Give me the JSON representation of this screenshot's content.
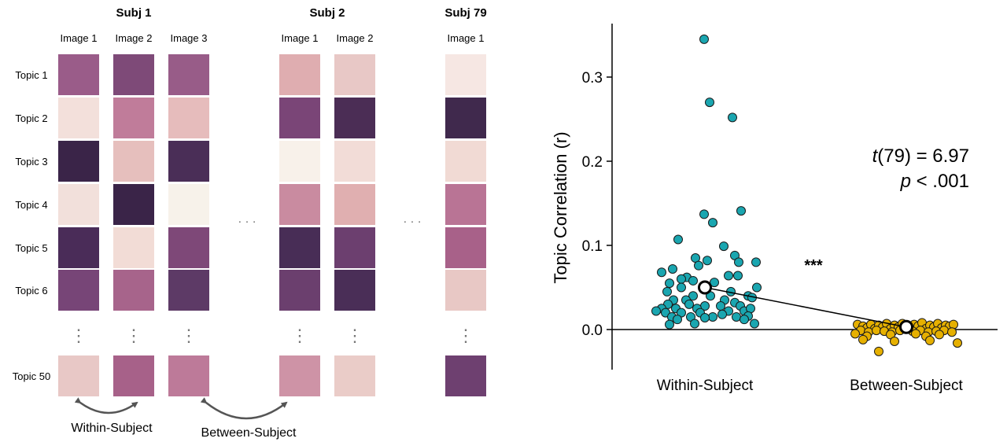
{
  "chart_data": [
    {
      "type": "heatmap",
      "description_panel": "left",
      "subjects": [
        {
          "title": "Subj 1",
          "images": [
            "Image 1",
            "Image 2",
            "Image 3"
          ]
        },
        {
          "title": "Subj 2",
          "images": [
            "Image 1",
            "Image 2"
          ]
        },
        {
          "title": "Subj 79",
          "images": [
            "Image 1"
          ]
        }
      ],
      "row_labels": [
        "Topic 1",
        "Topic 2",
        "Topic 3",
        "Topic 4",
        "Topic 5",
        "Topic 6",
        "Topic 50"
      ],
      "ellipsis_h": "· · ·",
      "ellipsis_v": "⋮",
      "cell_colors": [
        [
          "#9a5c89",
          "#7e4a78",
          "#985c88",
          "#dfadb0",
          "#e8c8c6",
          "#f6e7e3"
        ],
        [
          "#f3e0db",
          "#c07c9a",
          "#e6bcbc",
          "#7a4577",
          "#4b2d55",
          "#40294d"
        ],
        [
          "#3a2448",
          "#e6bfbd",
          "#4a2e57",
          "#f8f1ea",
          "#f2dcd7",
          "#f1dad4"
        ],
        [
          "#f2e0db",
          "#3a2448",
          "#f7f2ea",
          "#c98ba0",
          "#e0afb0",
          "#b97495"
        ],
        [
          "#4a2c58",
          "#f2dcd6",
          "#7e4878",
          "#482d56",
          "#6c3f6f",
          "#a86189"
        ],
        [
          "#774577",
          "#a7648b",
          "#5d3a66",
          "#6b3f6e",
          "#4a2e57",
          "#e8c8c5"
        ],
        [
          "#e8c8c6",
          "#a76189",
          "#bd7a99",
          "#ce93a6",
          "#eaccc8",
          "#6e4070"
        ]
      ],
      "arrows": [
        "Within-Subject",
        "Between-Subject"
      ]
    },
    {
      "type": "scatter",
      "ylabel": "Topic Correlation (r)",
      "categories": [
        "Within-Subject",
        "Between-Subject"
      ],
      "ylim": [
        -0.048,
        0.355
      ],
      "yticks": [
        0.0,
        0.1,
        0.2,
        0.3
      ],
      "ytick_labels": [
        "0.0",
        "0.1",
        "0.2",
        "0.3"
      ],
      "series": [
        {
          "name": "Within-Subject",
          "color": "#1aa6b0",
          "jitter_halfwidth": 0.34,
          "mean": 0.05,
          "sem": 0.006,
          "points": [
            {
              "j": -0.01,
              "y": 0.345
            },
            {
              "j": 0.06,
              "y": 0.27
            },
            {
              "j": 0.35,
              "y": 0.252
            },
            {
              "j": 0.46,
              "y": 0.141
            },
            {
              "j": -0.01,
              "y": 0.137
            },
            {
              "j": 0.1,
              "y": 0.127
            },
            {
              "j": -0.34,
              "y": 0.107
            },
            {
              "j": 0.24,
              "y": 0.099
            },
            {
              "j": -0.12,
              "y": 0.085
            },
            {
              "j": 0.38,
              "y": 0.088
            },
            {
              "j": -0.08,
              "y": 0.076
            },
            {
              "j": 0.03,
              "y": 0.082
            },
            {
              "j": 0.43,
              "y": 0.08
            },
            {
              "j": 0.65,
              "y": 0.08
            },
            {
              "j": -0.41,
              "y": 0.072
            },
            {
              "j": -0.55,
              "y": 0.068
            },
            {
              "j": 0.3,
              "y": 0.064
            },
            {
              "j": -0.23,
              "y": 0.062
            },
            {
              "j": -0.3,
              "y": 0.06
            },
            {
              "j": -0.15,
              "y": 0.058
            },
            {
              "j": 0.42,
              "y": 0.064
            },
            {
              "j": -0.45,
              "y": 0.055
            },
            {
              "j": 0.12,
              "y": 0.056
            },
            {
              "j": -0.3,
              "y": 0.05
            },
            {
              "j": 0.66,
              "y": 0.05
            },
            {
              "j": -0.48,
              "y": 0.045
            },
            {
              "j": 0.33,
              "y": 0.045
            },
            {
              "j": -0.15,
              "y": 0.04
            },
            {
              "j": 0.07,
              "y": 0.04
            },
            {
              "j": 0.55,
              "y": 0.04
            },
            {
              "j": -0.4,
              "y": 0.035
            },
            {
              "j": -0.24,
              "y": 0.035
            },
            {
              "j": 0.25,
              "y": 0.035
            },
            {
              "j": 0.6,
              "y": 0.038
            },
            {
              "j": -0.47,
              "y": 0.03
            },
            {
              "j": -0.2,
              "y": 0.03
            },
            {
              "j": 0.0,
              "y": 0.028
            },
            {
              "j": 0.38,
              "y": 0.032
            },
            {
              "j": -0.55,
              "y": 0.025
            },
            {
              "j": -0.37,
              "y": 0.025
            },
            {
              "j": -0.1,
              "y": 0.025
            },
            {
              "j": 0.2,
              "y": 0.028
            },
            {
              "j": 0.45,
              "y": 0.028
            },
            {
              "j": -0.62,
              "y": 0.022
            },
            {
              "j": -0.5,
              "y": 0.02
            },
            {
              "j": -0.3,
              "y": 0.02
            },
            {
              "j": -0.06,
              "y": 0.02
            },
            {
              "j": 0.3,
              "y": 0.022
            },
            {
              "j": 0.5,
              "y": 0.022
            },
            {
              "j": 0.58,
              "y": 0.025
            },
            {
              "j": -0.42,
              "y": 0.015
            },
            {
              "j": -0.18,
              "y": 0.015
            },
            {
              "j": 0.1,
              "y": 0.015
            },
            {
              "j": 0.4,
              "y": 0.015
            },
            {
              "j": 0.55,
              "y": 0.016
            },
            {
              "j": -0.35,
              "y": 0.012
            },
            {
              "j": 0.0,
              "y": 0.014
            },
            {
              "j": 0.22,
              "y": 0.018
            },
            {
              "j": 0.5,
              "y": 0.012
            },
            {
              "j": -0.45,
              "y": 0.006
            },
            {
              "j": -0.13,
              "y": 0.007
            },
            {
              "j": 0.63,
              "y": 0.007
            }
          ]
        },
        {
          "name": "Between-Subject",
          "color": "#e6b000",
          "jitter_halfwidth": 0.34,
          "mean": 0.003,
          "sem": 0.001,
          "points": [
            {
              "j": -0.62,
              "y": 0.006
            },
            {
              "j": -0.55,
              "y": 0.004
            },
            {
              "j": -0.5,
              "y": 0.002
            },
            {
              "j": -0.45,
              "y": 0.006
            },
            {
              "j": -0.4,
              "y": 0.001
            },
            {
              "j": -0.35,
              "y": 0.005
            },
            {
              "j": -0.3,
              "y": 0.003
            },
            {
              "j": -0.25,
              "y": 0.007
            },
            {
              "j": -0.2,
              "y": 0.001
            },
            {
              "j": -0.15,
              "y": 0.005
            },
            {
              "j": -0.1,
              "y": 0.003
            },
            {
              "j": -0.05,
              "y": 0.007
            },
            {
              "j": 0.05,
              "y": 0.002
            },
            {
              "j": 0.1,
              "y": 0.006
            },
            {
              "j": 0.15,
              "y": 0.004
            },
            {
              "j": 0.2,
              "y": 0.008
            },
            {
              "j": 0.25,
              "y": 0.001
            },
            {
              "j": 0.3,
              "y": 0.005
            },
            {
              "j": 0.35,
              "y": 0.003
            },
            {
              "j": 0.4,
              "y": 0.007
            },
            {
              "j": 0.45,
              "y": 0.002
            },
            {
              "j": 0.5,
              "y": 0.005
            },
            {
              "j": 0.55,
              "y": 0.004
            },
            {
              "j": 0.6,
              "y": 0.006
            },
            {
              "j": -0.58,
              "y": -0.001
            },
            {
              "j": -0.48,
              "y": -0.003
            },
            {
              "j": -0.38,
              "y": -0.001
            },
            {
              "j": -0.28,
              "y": -0.002
            },
            {
              "j": -0.18,
              "y": -0.003
            },
            {
              "j": -0.08,
              "y": -0.001
            },
            {
              "j": 0.08,
              "y": -0.002
            },
            {
              "j": 0.18,
              "y": -0.001
            },
            {
              "j": 0.28,
              "y": -0.003
            },
            {
              "j": 0.38,
              "y": -0.002
            },
            {
              "j": 0.48,
              "y": -0.001
            },
            {
              "j": 0.58,
              "y": -0.003
            },
            {
              "j": -0.65,
              "y": -0.005
            },
            {
              "j": -0.2,
              "y": -0.006
            },
            {
              "j": 0.12,
              "y": -0.005
            },
            {
              "j": 0.42,
              "y": -0.006
            },
            {
              "j": -0.5,
              "y": -0.008
            },
            {
              "j": 0.25,
              "y": -0.008
            },
            {
              "j": -0.55,
              "y": -0.012
            },
            {
              "j": -0.15,
              "y": -0.014
            },
            {
              "j": 0.3,
              "y": -0.013
            },
            {
              "j": 0.65,
              "y": -0.016
            },
            {
              "j": -0.35,
              "y": -0.026
            }
          ]
        }
      ],
      "annotations": {
        "significance": "***",
        "stat_t_italic": "t",
        "stat_t_rest": "(79) = 6.97",
        "stat_p_italic": "p",
        "stat_p_rest": " < .001"
      }
    }
  ]
}
